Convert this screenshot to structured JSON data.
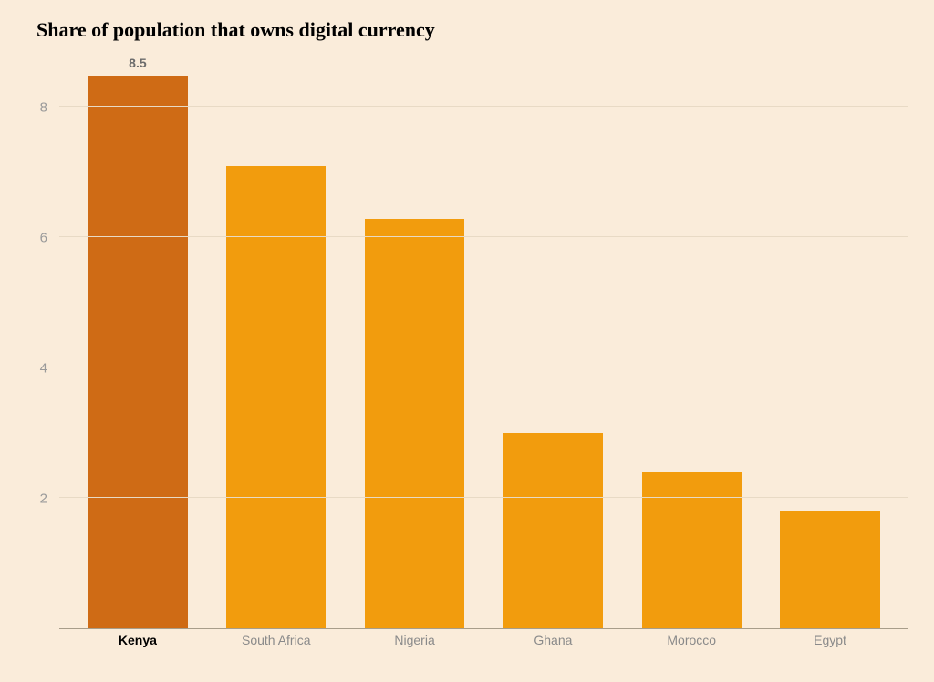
{
  "chart": {
    "type": "bar",
    "title": "Share of population that owns digital currency",
    "title_fontsize": 22,
    "title_color": "#000000",
    "background_color": "#faecda",
    "plot_background_color": "#faecda",
    "categories": [
      "Kenya",
      "South Africa",
      "Nigeria",
      "Ghana",
      "Morocco",
      "Egypt"
    ],
    "values": [
      8.5,
      7.1,
      6.3,
      3.0,
      2.4,
      1.8
    ],
    "bar_colors": [
      "#cf6b15",
      "#f29c0d",
      "#f29c0d",
      "#f29c0d",
      "#f29c0d",
      "#f29c0d"
    ],
    "highlighted_index": 0,
    "value_label_shown_index": 0,
    "value_label_text": "8.5",
    "value_label_color": "#6b6b6b",
    "value_label_fontsize": 14,
    "bar_width": 0.72,
    "ylim": [
      0,
      8.9
    ],
    "yticks": [
      2,
      4,
      6,
      8
    ],
    "ytick_fontsize": 15,
    "ytick_color": "#9a9a9a",
    "xaxis_label_fontsize": 14,
    "xaxis_label_color": "#8a8a8a",
    "xaxis_label_highlight_color": "#000000",
    "grid_color": "#e8dac5",
    "axis_line_color": "#a89d8a"
  }
}
